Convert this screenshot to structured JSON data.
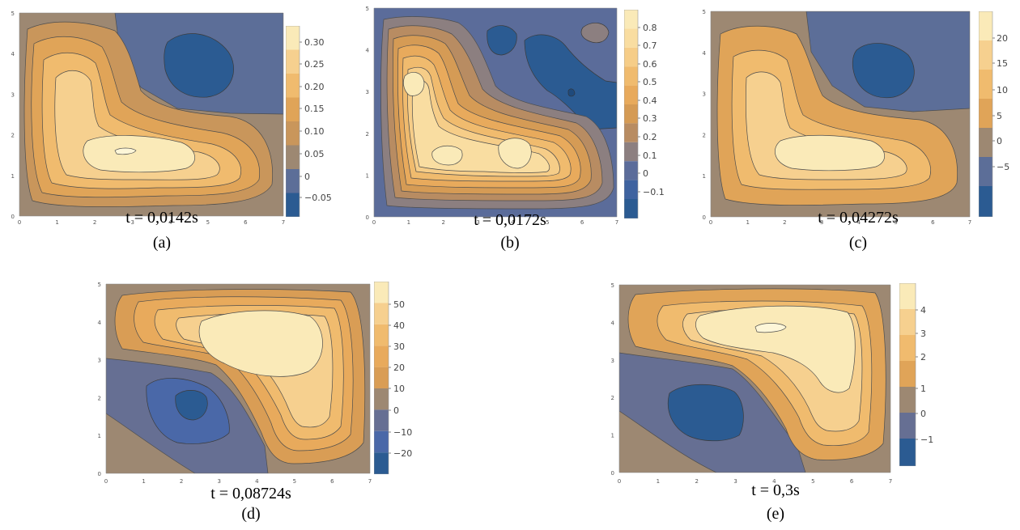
{
  "chart_data": [
    {
      "type": "contour",
      "time_label": "t = 0,0142s",
      "panel_label": "(a)",
      "x_ticks": [
        "0",
        "1",
        "2",
        "3",
        "4",
        "5",
        "6",
        "7"
      ],
      "y_ticks": [
        "0",
        "1",
        "2",
        "3",
        "4",
        "5"
      ],
      "legend_ticks": [
        "0.30",
        "0.25",
        "0.20",
        "0.15",
        "0.10",
        "0.05",
        "0",
        "−0.05"
      ],
      "colors": [
        "#2b5b92",
        "#5c6e98",
        "#9d8872",
        "#c9965b",
        "#e0a458",
        "#f0bb6e",
        "#f6d08f",
        "#faeab8"
      ]
    },
    {
      "type": "contour",
      "time_label": "t = 0,0172s",
      "panel_label": "(b)",
      "x_ticks": [
        "0",
        "1",
        "2",
        "3",
        "4",
        "5",
        "6",
        "7"
      ],
      "y_ticks": [
        "0",
        "1",
        "2",
        "3",
        "4",
        "5"
      ],
      "legend_ticks": [
        "0.8",
        "0.7",
        "0.6",
        "0.5",
        "0.4",
        "0.3",
        "0.2",
        "0.1",
        "0",
        "−0.1"
      ],
      "colors": [
        "#2b5b92",
        "#3f63a0",
        "#5b6c9a",
        "#8c7f80",
        "#b88c62",
        "#d59b55",
        "#e8aa5c",
        "#f0bb6e",
        "#f6cd88",
        "#f9dda1",
        "#faeab8"
      ]
    },
    {
      "type": "contour",
      "time_label": "t = 0,04272s",
      "panel_label": "(c)",
      "x_ticks": [
        "0",
        "1",
        "2",
        "3",
        "4",
        "5",
        "6",
        "7"
      ],
      "y_ticks": [
        "0",
        "1",
        "2",
        "3",
        "4",
        "5"
      ],
      "legend_ticks": [
        "20",
        "15",
        "10",
        "5",
        "0",
        "−5"
      ],
      "colors": [
        "#2b5b92",
        "#5c6e98",
        "#9d8872",
        "#e0a458",
        "#f0bb6e",
        "#f6d08f",
        "#faeab8"
      ]
    },
    {
      "type": "contour",
      "time_label": "t = 0,08724s",
      "panel_label": "(d)",
      "x_ticks": [
        "0",
        "1",
        "2",
        "3",
        "4",
        "5",
        "6",
        "7"
      ],
      "y_ticks": [
        "0",
        "1",
        "2",
        "3",
        "4",
        "5"
      ],
      "legend_ticks": [
        "50",
        "40",
        "30",
        "20",
        "10",
        "0",
        "−10",
        "−20"
      ],
      "colors": [
        "#2b5b92",
        "#4a68a8",
        "#666f93",
        "#9d8872",
        "#d99d55",
        "#e8aa5c",
        "#f0bb6e",
        "#f6d08f",
        "#faeab8"
      ]
    },
    {
      "type": "contour",
      "time_label": "t = 0,3s",
      "panel_label": "(e)",
      "x_ticks": [
        "0",
        "1",
        "2",
        "3",
        "4",
        "5",
        "6",
        "7"
      ],
      "y_ticks": [
        "0",
        "1",
        "2",
        "3",
        "4",
        "5"
      ],
      "legend_ticks": [
        "4",
        "3",
        "2",
        "1",
        "0",
        "−1"
      ],
      "colors": [
        "#2b5b92",
        "#666f93",
        "#9d8872",
        "#e0a458",
        "#f0bb6e",
        "#f6d08f",
        "#faeab8"
      ]
    }
  ]
}
